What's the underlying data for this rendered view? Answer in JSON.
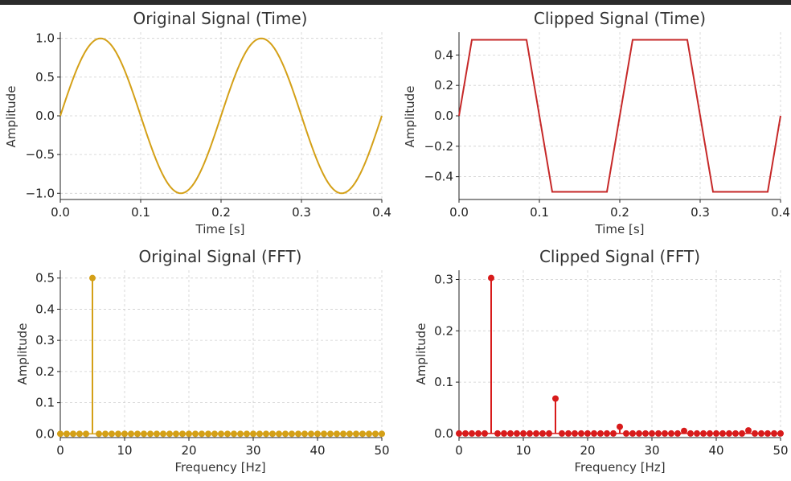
{
  "figure": {
    "topbar_color": "#2b2b2b"
  },
  "chart_data": [
    {
      "id": "orig_time",
      "type": "line",
      "title": "Original Signal (Time)",
      "xlabel": "Time [s]",
      "ylabel": "Amplitude",
      "xlim": [
        0,
        0.4
      ],
      "ylim": [
        -1.08,
        1.08
      ],
      "xticks": [
        0.0,
        0.1,
        0.2,
        0.3,
        0.4
      ],
      "xtick_labels": [
        "0.0",
        "0.1",
        "0.2",
        "0.3",
        "0.4"
      ],
      "yticks": [
        1.0,
        0.5,
        0.0,
        -0.5,
        -1.0
      ],
      "ytick_labels": [
        "1.0",
        "0.5",
        "0.0",
        "−0.5",
        "−1.0"
      ],
      "grid": true,
      "color": "#d4a017",
      "series": {
        "x": [
          0.0,
          0.0125,
          0.025,
          0.0375,
          0.05,
          0.0625,
          0.075,
          0.0875,
          0.1,
          0.1125,
          0.125,
          0.1375,
          0.15,
          0.1625,
          0.175,
          0.1875,
          0.2,
          0.2125,
          0.225,
          0.2375,
          0.25,
          0.2625,
          0.275,
          0.2875,
          0.3,
          0.3125,
          0.325,
          0.3375,
          0.35,
          0.3625,
          0.375,
          0.3875,
          0.4
        ],
        "y": [
          0.0,
          0.383,
          0.707,
          0.924,
          1.0,
          0.924,
          0.707,
          0.383,
          0.0,
          -0.383,
          -0.707,
          -0.924,
          -1.0,
          -0.924,
          -0.707,
          -0.383,
          0.0,
          0.383,
          0.707,
          0.924,
          1.0,
          0.924,
          0.707,
          0.383,
          0.0,
          -0.383,
          -0.707,
          -0.924,
          -1.0,
          -0.924,
          -0.707,
          -0.383,
          0.0
        ]
      }
    },
    {
      "id": "clip_time",
      "type": "line",
      "title": "Clipped Signal (Time)",
      "xlabel": "Time [s]",
      "ylabel": "Amplitude",
      "xlim": [
        0,
        0.4
      ],
      "ylim": [
        -0.55,
        0.55
      ],
      "xticks": [
        0.0,
        0.1,
        0.2,
        0.3,
        0.4
      ],
      "xtick_labels": [
        "0.0",
        "0.1",
        "0.2",
        "0.3",
        "0.4"
      ],
      "yticks": [
        0.4,
        0.2,
        0.0,
        -0.2,
        -0.4
      ],
      "ytick_labels": [
        "0.4",
        "0.2",
        "0.0",
        "−0.2",
        "−0.4"
      ],
      "grid": true,
      "color": "#c62828",
      "series": {
        "x": [
          0.0,
          0.016,
          0.084,
          0.116,
          0.184,
          0.216,
          0.284,
          0.316,
          0.384,
          0.4
        ],
        "y": [
          0.0,
          0.5,
          0.5,
          -0.5,
          -0.5,
          0.5,
          0.5,
          -0.5,
          -0.5,
          0.0
        ]
      }
    },
    {
      "id": "orig_fft",
      "type": "stem",
      "title": "Original Signal (FFT)",
      "xlabel": "Frequency [Hz]",
      "ylabel": "Amplitude",
      "xlim": [
        0,
        50
      ],
      "ylim": [
        -0.012,
        0.525
      ],
      "xticks": [
        0,
        10,
        20,
        30,
        40,
        50
      ],
      "xtick_labels": [
        "0",
        "10",
        "20",
        "30",
        "40",
        "50"
      ],
      "yticks": [
        0.5,
        0.4,
        0.3,
        0.2,
        0.1,
        0.0
      ],
      "ytick_labels": [
        "0.5",
        "0.4",
        "0.3",
        "0.2",
        "0.1",
        "0.0"
      ],
      "grid": true,
      "color": "#d4a017",
      "freq_step": 1,
      "series": {
        "x": [
          0,
          1,
          2,
          3,
          4,
          5,
          6,
          7,
          8,
          9,
          10,
          11,
          12,
          13,
          14,
          15,
          16,
          17,
          18,
          19,
          20,
          21,
          22,
          23,
          24,
          25,
          26,
          27,
          28,
          29,
          30,
          31,
          32,
          33,
          34,
          35,
          36,
          37,
          38,
          39,
          40,
          41,
          42,
          43,
          44,
          45,
          46,
          47,
          48,
          49,
          50
        ],
        "y": [
          0,
          0,
          0,
          0,
          0,
          0.5,
          0,
          0,
          0,
          0,
          0,
          0,
          0,
          0,
          0,
          0,
          0,
          0,
          0,
          0,
          0,
          0,
          0,
          0,
          0,
          0,
          0,
          0,
          0,
          0,
          0,
          0,
          0,
          0,
          0,
          0,
          0,
          0,
          0,
          0,
          0,
          0,
          0,
          0,
          0,
          0,
          0,
          0,
          0,
          0,
          0
        ]
      }
    },
    {
      "id": "clip_fft",
      "type": "stem",
      "title": "Clipped Signal (FFT)",
      "xlabel": "Frequency [Hz]",
      "ylabel": "Amplitude",
      "xlim": [
        0,
        50
      ],
      "ylim": [
        -0.008,
        0.318
      ],
      "xticks": [
        0,
        10,
        20,
        30,
        40,
        50
      ],
      "xtick_labels": [
        "0",
        "10",
        "20",
        "30",
        "40",
        "50"
      ],
      "yticks": [
        0.3,
        0.2,
        0.1,
        0.0
      ],
      "ytick_labels": [
        "0.3",
        "0.2",
        "0.1",
        "0.0"
      ],
      "grid": true,
      "color": "#d81b1b",
      "series": {
        "x": [
          0,
          1,
          2,
          3,
          4,
          5,
          6,
          7,
          8,
          9,
          10,
          11,
          12,
          13,
          14,
          15,
          16,
          17,
          18,
          19,
          20,
          21,
          22,
          23,
          24,
          25,
          26,
          27,
          28,
          29,
          30,
          31,
          32,
          33,
          34,
          35,
          36,
          37,
          38,
          39,
          40,
          41,
          42,
          43,
          44,
          45,
          46,
          47,
          48,
          49,
          50
        ],
        "y": [
          0,
          0,
          0,
          0,
          0,
          0.303,
          0,
          0,
          0,
          0,
          0,
          0,
          0,
          0,
          0,
          0.068,
          0,
          0,
          0,
          0,
          0,
          0,
          0,
          0,
          0,
          0.013,
          0,
          0,
          0,
          0,
          0,
          0,
          0,
          0,
          0,
          0.005,
          0,
          0,
          0,
          0,
          0,
          0,
          0,
          0,
          0,
          0.006,
          0,
          0,
          0,
          0,
          0
        ]
      }
    }
  ]
}
